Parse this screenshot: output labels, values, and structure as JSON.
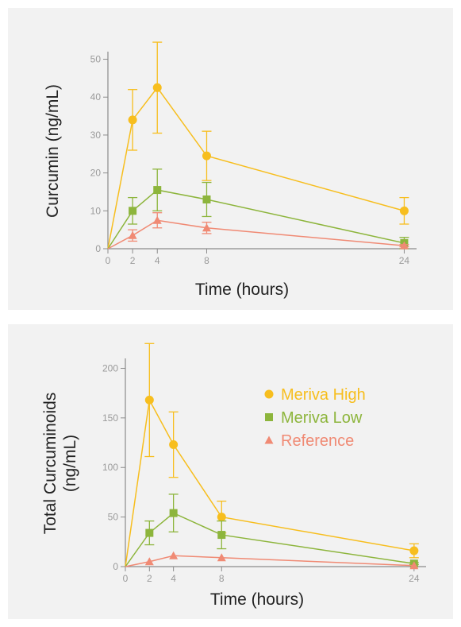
{
  "colors": {
    "meriva_high": "#f7be1e",
    "meriva_low": "#8db53c",
    "reference": "#f08a74",
    "axis": "#8c8c8c",
    "tick_text": "#9a9a9a",
    "title_text": "#222222"
  },
  "legend": {
    "placement": "top-right",
    "items": [
      {
        "label": "Meriva High",
        "marker": "circle",
        "color": "#f7be1e"
      },
      {
        "label": "Meriva Low",
        "marker": "square",
        "color": "#8db53c"
      },
      {
        "label": "Reference",
        "marker": "triangle",
        "color": "#f08a74"
      }
    ]
  },
  "chart_data": [
    {
      "type": "line",
      "title": "",
      "xlabel": "Time (hours)",
      "ylabel": "Curcumin (ng/mL)",
      "x": [
        0,
        2,
        4,
        8,
        24
      ],
      "xticks": [
        0,
        2,
        4,
        8,
        24
      ],
      "yticks": [
        0,
        10,
        20,
        30,
        40,
        50
      ],
      "xlim": [
        0,
        25
      ],
      "ylim": [
        0,
        52
      ],
      "grid": false,
      "series": [
        {
          "name": "Meriva High",
          "marker": "circle",
          "color": "#f7be1e",
          "values": [
            0,
            34,
            42.5,
            24.5,
            10
          ],
          "error": [
            0,
            8,
            12,
            6.5,
            3.5
          ]
        },
        {
          "name": "Meriva Low",
          "marker": "square",
          "color": "#8db53c",
          "values": [
            0,
            10,
            15.5,
            13,
            1.5
          ],
          "error": [
            0,
            3.5,
            5.5,
            4.5,
            1.5
          ]
        },
        {
          "name": "Reference",
          "marker": "triangle",
          "color": "#f08a74",
          "values": [
            0,
            3.5,
            7.5,
            5.5,
            0.8
          ],
          "error": [
            0,
            1.5,
            2,
            1.5,
            0.3
          ]
        }
      ]
    },
    {
      "type": "line",
      "title": "",
      "xlabel": "Time (hours)",
      "ylabel": "Total Curcuminoids (ng/mL)",
      "ylabel_lines": [
        "Total Curcuminoids",
        "(ng/mL)"
      ],
      "x": [
        0,
        2,
        4,
        8,
        24
      ],
      "xticks": [
        0,
        2,
        4,
        8,
        24
      ],
      "yticks": [
        0,
        50,
        100,
        150,
        200
      ],
      "xlim": [
        0,
        25
      ],
      "ylim": [
        0,
        210
      ],
      "grid": false,
      "series": [
        {
          "name": "Meriva High",
          "marker": "circle",
          "color": "#f7be1e",
          "values": [
            0,
            168,
            123,
            50,
            16
          ],
          "error": [
            0,
            57,
            33,
            16,
            7
          ]
        },
        {
          "name": "Meriva Low",
          "marker": "square",
          "color": "#8db53c",
          "values": [
            0,
            34,
            54,
            32,
            3
          ],
          "error": [
            0,
            12,
            19,
            14,
            1
          ]
        },
        {
          "name": "Reference",
          "marker": "triangle",
          "color": "#f08a74",
          "values": [
            0,
            5,
            11,
            9,
            1
          ],
          "error": [
            0,
            0,
            0,
            0,
            0
          ]
        }
      ]
    }
  ]
}
